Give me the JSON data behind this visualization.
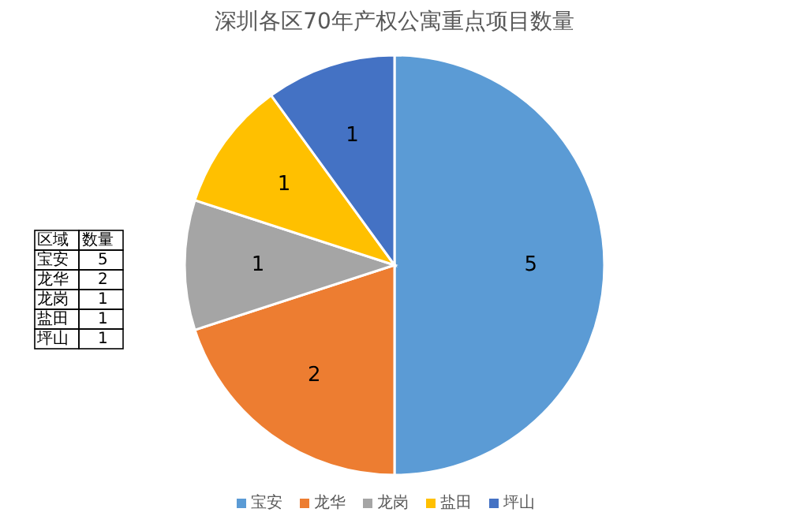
{
  "chart_data": [
    {
      "type": "pie",
      "title": "深圳各区70年产权公寓重点项目数量",
      "categories": [
        "宝安",
        "龙华",
        "龙岗",
        "盐田",
        "坪山"
      ],
      "values": [
        5,
        2,
        1,
        1,
        1
      ],
      "colors": [
        "#5b9bd5",
        "#ed7d31",
        "#a5a5a5",
        "#ffc000",
        "#4472c4"
      ],
      "data_labels": true,
      "legend": "bottom"
    },
    {
      "type": "other",
      "annotations": [
        "区域",
        "数量"
      ],
      "categories": [
        "宝安",
        "龙华",
        "龙岗",
        "盐田",
        "坪山"
      ],
      "values": [
        5,
        2,
        1,
        1,
        1
      ],
      "data_labels": true
    }
  ]
}
